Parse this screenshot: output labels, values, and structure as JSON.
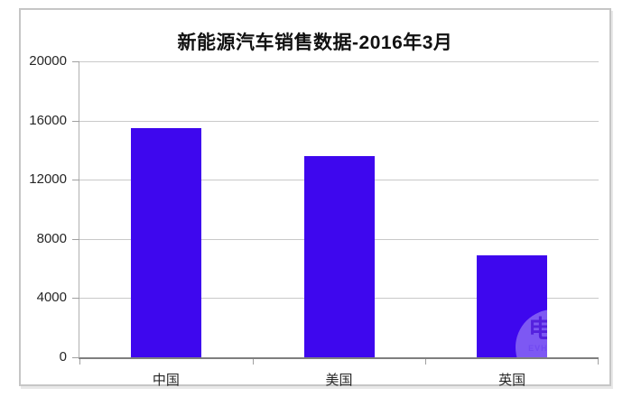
{
  "chart_data": {
    "type": "bar",
    "title": "新能源汽车销售数据-2016年3月",
    "categories": [
      "中国",
      "美国",
      "英国"
    ],
    "values": [
      15500,
      13600,
      6900
    ],
    "xlabel": "",
    "ylabel": "",
    "ylim": [
      0,
      20000
    ],
    "yticks": [
      0,
      4000,
      8000,
      12000,
      16000,
      20000
    ],
    "grid": true,
    "legend_position": "none",
    "bar_color": "#3E07EE"
  },
  "watermark": {
    "glyph": "电",
    "text": "EVH"
  },
  "colors": {
    "bar": "#3E07EE",
    "gridline": "#c9c9c9",
    "axis_line": "#7f7f7f",
    "tick": "#a0a0a0",
    "frame_border": "#c6c6c6",
    "text": "#262626",
    "title_text": "#111111",
    "background": "#ffffff"
  }
}
